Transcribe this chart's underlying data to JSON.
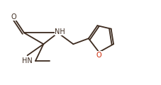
{
  "bg_color": "#ffffff",
  "line_color": "#3d2b1f",
  "o_color": "#3d2b1f",
  "furan_o_color": "#cc2200",
  "figsize": [
    2.27,
    1.2
  ],
  "dpi": 100,
  "bond_lw": 1.3,
  "font_size": 7.0,
  "xlim": [
    0,
    10.0
  ],
  "ylim": [
    0,
    5.2
  ]
}
